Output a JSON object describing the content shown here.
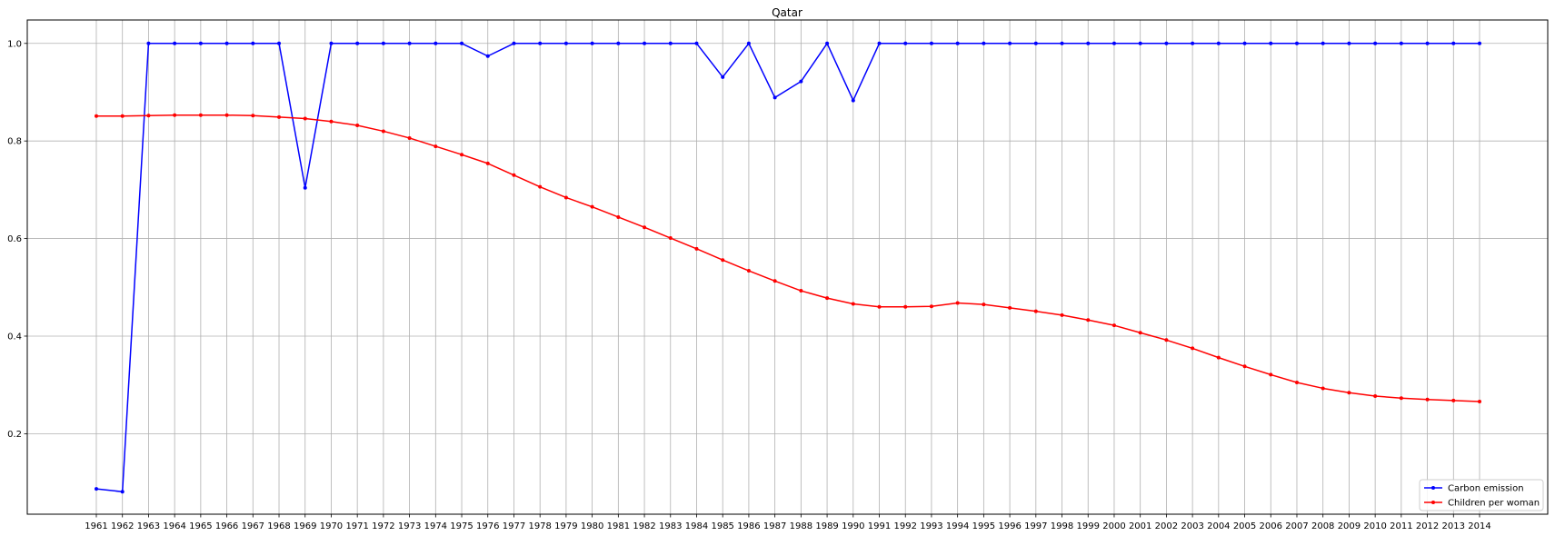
{
  "chart_data": {
    "type": "line",
    "title": "Qatar",
    "xlabel": "",
    "ylabel": "",
    "x": [
      "1961",
      "1962",
      "1963",
      "1964",
      "1965",
      "1966",
      "1967",
      "1968",
      "1969",
      "1970",
      "1971",
      "1972",
      "1973",
      "1974",
      "1975",
      "1976",
      "1977",
      "1978",
      "1979",
      "1980",
      "1981",
      "1982",
      "1983",
      "1984",
      "1985",
      "1986",
      "1987",
      "1988",
      "1989",
      "1990",
      "1991",
      "1992",
      "1993",
      "1994",
      "1995",
      "1996",
      "1997",
      "1998",
      "1999",
      "2000",
      "2001",
      "2002",
      "2003",
      "2004",
      "2005",
      "2006",
      "2007",
      "2008",
      "2009",
      "2010",
      "2011",
      "2012",
      "2013",
      "2014"
    ],
    "y_ticks": [
      "0.2",
      "0.4",
      "0.6",
      "0.8",
      "1.0"
    ],
    "ylim": [
      0.035,
      1.048
    ],
    "grid": true,
    "legend_position": "lower right",
    "series": [
      {
        "name": "Carbon emission",
        "color": "#0000ff",
        "marker": "dot",
        "values": [
          0.087,
          0.081,
          1.0,
          1.0,
          1.0,
          1.0,
          1.0,
          1.0,
          0.704,
          1.0,
          1.0,
          1.0,
          1.0,
          1.0,
          1.0,
          0.974,
          1.0,
          1.0,
          1.0,
          1.0,
          1.0,
          1.0,
          1.0,
          1.0,
          0.931,
          1.0,
          0.889,
          0.922,
          1.0,
          0.883,
          1.0,
          1.0,
          1.0,
          1.0,
          1.0,
          1.0,
          1.0,
          1.0,
          1.0,
          1.0,
          1.0,
          1.0,
          1.0,
          1.0,
          1.0,
          1.0,
          1.0,
          1.0,
          1.0,
          1.0,
          1.0,
          1.0,
          1.0,
          1.0
        ]
      },
      {
        "name": "Children per woman",
        "color": "#ff0000",
        "marker": "dot",
        "values": [
          0.851,
          0.851,
          0.852,
          0.853,
          0.853,
          0.853,
          0.852,
          0.849,
          0.846,
          0.84,
          0.832,
          0.82,
          0.806,
          0.789,
          0.772,
          0.754,
          0.73,
          0.706,
          0.684,
          0.665,
          0.644,
          0.623,
          0.601,
          0.579,
          0.556,
          0.534,
          0.513,
          0.493,
          0.478,
          0.466,
          0.46,
          0.46,
          0.461,
          0.468,
          0.465,
          0.458,
          0.451,
          0.443,
          0.433,
          0.422,
          0.407,
          0.392,
          0.375,
          0.356,
          0.338,
          0.321,
          0.305,
          0.293,
          0.284,
          0.277,
          0.273,
          0.27,
          0.268,
          0.266
        ]
      }
    ]
  }
}
